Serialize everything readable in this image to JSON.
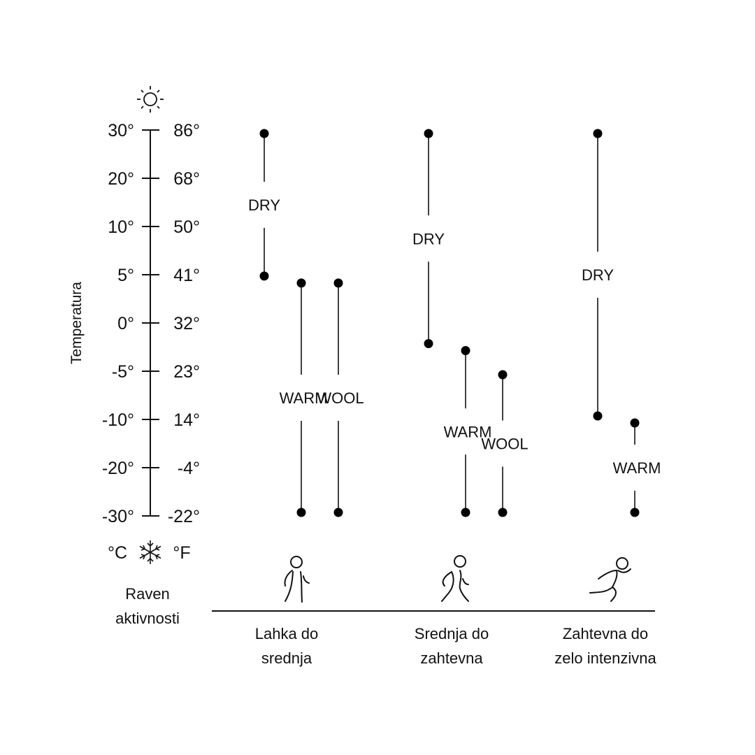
{
  "chart_data": {
    "type": "range",
    "ylabel": "Temperatura",
    "celsius_ticks": [
      "30°",
      "20°",
      "10°",
      "5°",
      "0°",
      "-5°",
      "-10°",
      "-20°",
      "-30°"
    ],
    "fahrenheit_ticks": [
      "86°",
      "68°",
      "50°",
      "41°",
      "32°",
      "23°",
      "14°",
      "-4°",
      "-22°"
    ],
    "tick_values_c": [
      30,
      20,
      10,
      5,
      0,
      -5,
      -10,
      -20,
      -30
    ],
    "unit_c": "°C",
    "unit_f": "°F",
    "activity_title": [
      "Raven",
      "aktivnosti"
    ],
    "ylim": [
      -30,
      30
    ],
    "top_icon": "sun-icon",
    "bottom_icon": "snowflake-icon",
    "groups": [
      {
        "label_lines": [
          "Lahka do",
          "srednja"
        ],
        "icon": "walking-person-icon",
        "ranges": [
          {
            "name": "DRY",
            "high": 30,
            "low": 4.5
          },
          {
            "name": "WARM",
            "high": 4.5,
            "low": -30
          },
          {
            "name": "WOOL",
            "high": 4.5,
            "low": -30
          }
        ]
      },
      {
        "label_lines": [
          "Srednja do",
          "zahtevna"
        ],
        "icon": "jogging-person-icon",
        "ranges": [
          {
            "name": "DRY",
            "high": 30,
            "low": -2.5
          },
          {
            "name": "WARM",
            "high": -2.5,
            "low": -30
          },
          {
            "name": "WOOL",
            "high": -5,
            "low": -30
          }
        ]
      },
      {
        "label_lines": [
          "Zahtevna do",
          "zelo intenzivna"
        ],
        "icon": "running-person-icon",
        "ranges": [
          {
            "name": "DRY",
            "high": 30,
            "low": -10
          },
          {
            "name": "WARM",
            "high": -10,
            "low": -30
          }
        ]
      }
    ]
  }
}
